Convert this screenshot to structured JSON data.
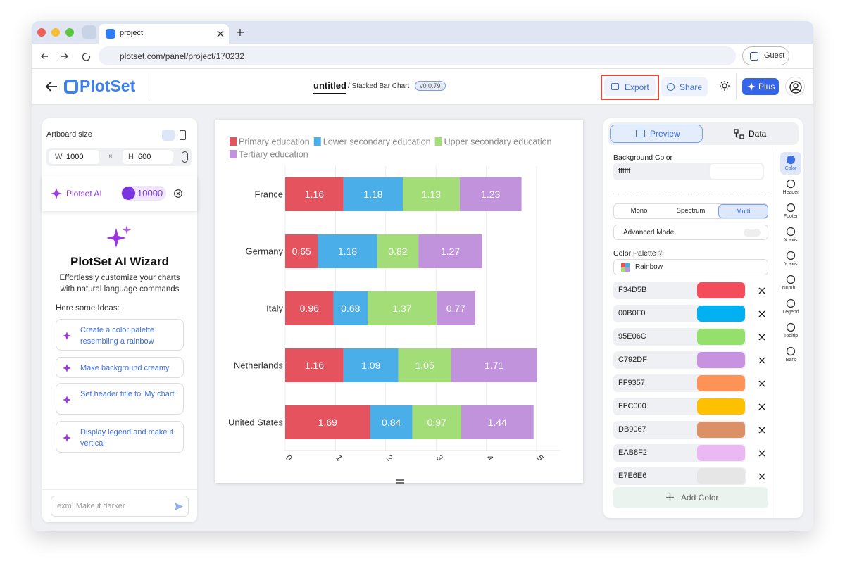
{
  "browser": {
    "tab_title": "project",
    "url": "plotset.com/panel/project/170232",
    "guest": "Guest"
  },
  "header": {
    "logo": "PlotSet",
    "title": "untitled",
    "subtitle": "/ Stacked Bar Chart",
    "version": "v0.0.79",
    "export": "Export",
    "share": "Share",
    "plus": "Plus"
  },
  "left_panel": {
    "artboard_label": "Artboard size",
    "w_label": "W",
    "width": "1000",
    "separator": "×",
    "h_label": "H",
    "height": "600",
    "ai_label": "Plotset AI",
    "credits": "10000",
    "wizard_title": "PlotSet AI Wizard",
    "wizard_description": "Effortlessly customize your charts with natural language commands",
    "ideas_label": "Here some Ideas:",
    "ideas": [
      "Create a color palette resembling a rainbow",
      "Make background creamy",
      "Set header title to 'My chart'",
      "Display legend and make it vertical"
    ],
    "input_placeholder": "exm: Make it darker"
  },
  "right_panel": {
    "tabs": [
      "Preview",
      "Data"
    ],
    "background_color_label": "Background Color",
    "background_color": "ffffff",
    "modes": [
      "Mono",
      "Spectrum",
      "Multi"
    ],
    "advanced_mode": "Advanced Mode",
    "palette_label": "Color Palette",
    "palette_help": "?",
    "palette": "Rainbow",
    "colors": [
      "F34D5B",
      "00B0F0",
      "95E06C",
      "C792DF",
      "FF9357",
      "FFC000",
      "DB9067",
      "EAB8F2",
      "E7E6E6"
    ],
    "add_color": "Add Color",
    "sidebar": [
      "Color",
      "Header",
      "Footer",
      "X axis",
      "Y axis",
      "Numb...",
      "Legend",
      "Tooltip",
      "Bars"
    ]
  },
  "chart_data": {
    "type": "bar",
    "orientation": "horizontal",
    "stacked": true,
    "categories": [
      "France",
      "Germany",
      "Italy",
      "Netherlands",
      "United States"
    ],
    "series": [
      {
        "name": "Primary education",
        "color": "#e5535f",
        "values": [
          1.16,
          0.65,
          0.96,
          1.16,
          1.69
        ]
      },
      {
        "name": "Lower secondary education",
        "color": "#4aaee8",
        "values": [
          1.18,
          1.18,
          0.68,
          1.09,
          0.84
        ]
      },
      {
        "name": "Upper secondary education",
        "color": "#a3dd78",
        "values": [
          1.13,
          0.82,
          1.37,
          1.05,
          0.97
        ]
      },
      {
        "name": "Tertiary education",
        "color": "#c193dd",
        "values": [
          1.23,
          1.27,
          0.77,
          1.71,
          1.44
        ]
      }
    ],
    "xlim": [
      0,
      5
    ],
    "xticks": [
      0,
      1,
      2,
      3,
      4,
      5
    ],
    "grid": true,
    "legend": "top"
  }
}
